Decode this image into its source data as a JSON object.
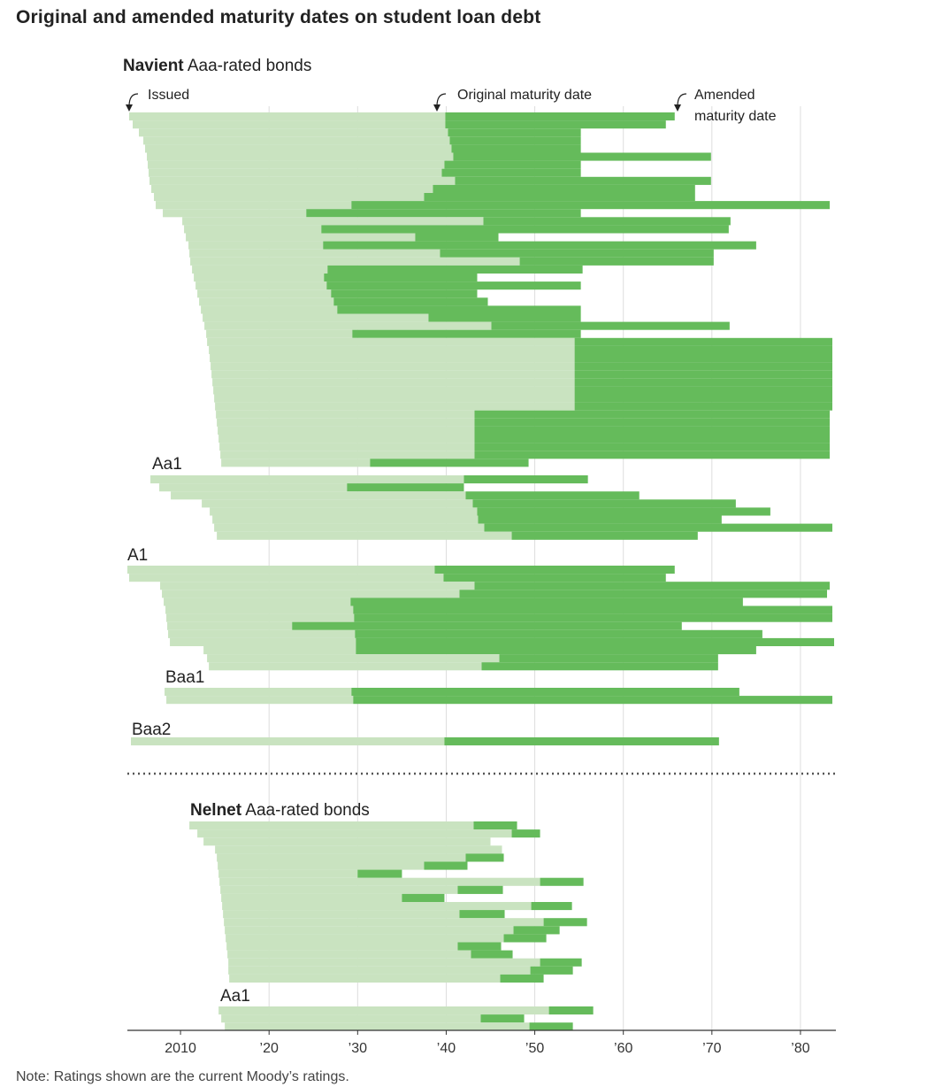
{
  "title": "Original and amended maturity dates on student loan debt",
  "note": "Note: Ratings shown are the current Moody’s ratings.",
  "colors": {
    "issued_to_original": "#c9e3c0",
    "original_to_amended": "#65bb5b",
    "grid": "#dddddd",
    "divider": "#555555"
  },
  "chart_data": {
    "type": "bar",
    "description_style": "floating horizontal bars per bond: light span = issued to original maturity, dark span = original maturity to amended maturity",
    "xlim": [
      2004,
      2084
    ],
    "x_ticks": [
      {
        "value": 2010,
        "label": "2010"
      },
      {
        "value": 2020,
        "label": "’20"
      },
      {
        "value": 2030,
        "label": "’30"
      },
      {
        "value": 2040,
        "label": "’40"
      },
      {
        "value": 2050,
        "label": "’50"
      },
      {
        "value": 2060,
        "label": "’60"
      },
      {
        "value": 2070,
        "label": "’70"
      },
      {
        "value": 2080,
        "label": "’80"
      }
    ],
    "annotations": [
      {
        "key": "issued",
        "text": "Issued"
      },
      {
        "key": "original",
        "text": "Original maturity date"
      },
      {
        "key": "amended",
        "lines": [
          "Amended",
          "maturity date"
        ]
      }
    ],
    "groups": [
      {
        "bold": "Navient",
        "label": " Aaa-rated bonds",
        "bonds": [
          [
            2004.2,
            2039.9,
            2065.8
          ],
          [
            2004.6,
            2039.9,
            2064.8
          ],
          [
            2005.3,
            2040.2,
            2055.2
          ],
          [
            2005.8,
            2040.4,
            2055.2
          ],
          [
            2006.0,
            2040.6,
            2055.2
          ],
          [
            2006.2,
            2040.8,
            2069.9
          ],
          [
            2006.3,
            2039.8,
            2055.2
          ],
          [
            2006.4,
            2039.5,
            2055.2
          ],
          [
            2006.5,
            2041.0,
            2069.9
          ],
          [
            2006.7,
            2038.5,
            2068.1
          ],
          [
            2007.0,
            2037.5,
            2068.1
          ],
          [
            2007.2,
            2029.3,
            2083.3
          ],
          [
            2008.0,
            2024.2,
            2055.2
          ],
          [
            2010.2,
            2044.2,
            2072.1
          ],
          [
            2010.4,
            2025.9,
            2071.9
          ],
          [
            2010.6,
            2036.5,
            2045.9
          ],
          [
            2010.9,
            2026.1,
            2075.0
          ],
          [
            2011.0,
            2039.3,
            2070.2
          ],
          [
            2011.1,
            2048.3,
            2070.2
          ],
          [
            2011.3,
            2026.6,
            2055.4
          ],
          [
            2011.5,
            2026.2,
            2043.5
          ],
          [
            2011.7,
            2026.5,
            2055.2
          ],
          [
            2011.9,
            2027.0,
            2043.5
          ],
          [
            2012.1,
            2027.3,
            2044.7
          ],
          [
            2012.3,
            2027.7,
            2055.2
          ],
          [
            2012.5,
            2038.0,
            2055.2
          ],
          [
            2012.7,
            2045.1,
            2072.0
          ],
          [
            2012.9,
            2029.4,
            2055.2
          ],
          [
            2013.0,
            2054.5,
            2083.6
          ],
          [
            2013.2,
            2054.5,
            2083.6
          ],
          [
            2013.3,
            2054.5,
            2083.6
          ],
          [
            2013.4,
            2054.5,
            2083.6
          ],
          [
            2013.5,
            2054.5,
            2083.6
          ],
          [
            2013.6,
            2054.5,
            2083.6
          ],
          [
            2013.7,
            2054.5,
            2083.6
          ],
          [
            2013.8,
            2054.5,
            2083.6
          ],
          [
            2013.9,
            2054.5,
            2083.6
          ],
          [
            2014.0,
            2043.2,
            2083.3
          ],
          [
            2014.1,
            2043.2,
            2083.3
          ],
          [
            2014.2,
            2043.2,
            2083.3
          ],
          [
            2014.3,
            2043.2,
            2083.3
          ],
          [
            2014.4,
            2043.2,
            2083.3
          ],
          [
            2014.5,
            2043.2,
            2083.3
          ],
          [
            2014.6,
            2031.4,
            2049.3
          ]
        ]
      },
      {
        "label": "Aa1",
        "bonds": [
          [
            2006.6,
            2042.0,
            2056.0
          ],
          [
            2007.6,
            2028.8,
            2042.0
          ],
          [
            2008.9,
            2042.2,
            2061.8
          ],
          [
            2012.4,
            2043.0,
            2072.7
          ],
          [
            2013.3,
            2043.5,
            2076.6
          ],
          [
            2013.6,
            2043.6,
            2071.1
          ],
          [
            2013.8,
            2044.3,
            2083.6
          ],
          [
            2014.1,
            2047.4,
            2068.4
          ]
        ]
      },
      {
        "label": "A1",
        "bonds": [
          [
            2004.0,
            2038.7,
            2065.8
          ],
          [
            2004.2,
            2039.7,
            2064.8
          ],
          [
            2007.7,
            2043.2,
            2083.3
          ],
          [
            2007.9,
            2041.5,
            2083.0
          ],
          [
            2008.1,
            2029.2,
            2073.5
          ],
          [
            2008.3,
            2029.5,
            2083.6
          ],
          [
            2008.4,
            2029.6,
            2083.6
          ],
          [
            2008.5,
            2022.6,
            2066.6
          ],
          [
            2008.6,
            2029.7,
            2075.7
          ],
          [
            2008.8,
            2029.8,
            2083.8
          ],
          [
            2012.6,
            2029.8,
            2075.0
          ],
          [
            2013.0,
            2046.0,
            2070.7
          ],
          [
            2013.2,
            2044.0,
            2070.7
          ]
        ]
      },
      {
        "label": "Baa1",
        "bonds": [
          [
            2008.2,
            2029.3,
            2073.1
          ],
          [
            2008.4,
            2029.5,
            2083.6
          ]
        ]
      },
      {
        "label": "Baa2",
        "bonds": [
          [
            2004.4,
            2039.8,
            2070.8
          ]
        ]
      },
      {
        "bold": "Nelnet",
        "label": " Aaa-rated bonds",
        "bonds": [
          [
            2011.0,
            2043.1,
            2048.0
          ],
          [
            2011.9,
            2047.4,
            2050.6
          ],
          [
            2012.6,
            2045.0,
            2045.0
          ],
          [
            2013.9,
            2046.3,
            2046.3
          ],
          [
            2014.1,
            2042.2,
            2046.5
          ],
          [
            2014.2,
            2037.5,
            2042.4
          ],
          [
            2014.3,
            2035.0,
            2030.0
          ],
          [
            2014.4,
            2050.6,
            2055.5
          ],
          [
            2014.5,
            2046.4,
            2041.3
          ],
          [
            2014.6,
            2035.0,
            2039.8
          ],
          [
            2014.7,
            2049.6,
            2054.2
          ],
          [
            2014.8,
            2046.6,
            2041.5
          ],
          [
            2014.9,
            2051.0,
            2055.9
          ],
          [
            2015.0,
            2052.8,
            2047.6
          ],
          [
            2015.1,
            2051.3,
            2046.5
          ],
          [
            2015.2,
            2041.3,
            2046.2
          ],
          [
            2015.3,
            2042.8,
            2047.5
          ],
          [
            2015.4,
            2050.6,
            2055.3
          ],
          [
            2015.4,
            2049.5,
            2054.3
          ],
          [
            2015.5,
            2046.1,
            2051.0
          ]
        ]
      },
      {
        "label": "Aa1",
        "bonds": [
          [
            2014.3,
            2051.6,
            2056.6
          ],
          [
            2014.6,
            2043.9,
            2048.8
          ],
          [
            2015.0,
            2049.4,
            2054.3
          ]
        ]
      }
    ]
  }
}
